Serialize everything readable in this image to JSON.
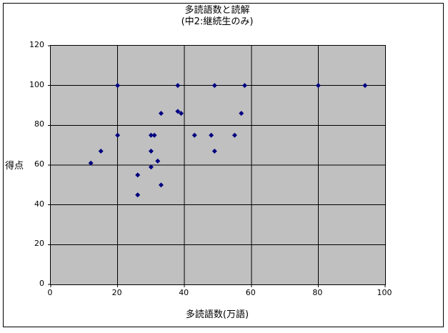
{
  "chart_data": {
    "type": "scatter",
    "title": "多読語数と読解",
    "subtitle": "(中2:継続生のみ)",
    "xlabel": "多読語数(万語)",
    "ylabel": "得点",
    "xlim": [
      0,
      100
    ],
    "ylim": [
      0,
      120
    ],
    "xticks": [
      0,
      20,
      40,
      60,
      80,
      100
    ],
    "yticks": [
      0,
      20,
      40,
      60,
      80,
      100,
      120
    ],
    "grid": true,
    "legend": false,
    "plot_bg_color": "#c0c0c0",
    "grid_color": "#000000",
    "axis_color": "#000000",
    "marker_color": "#000080",
    "marker_shape": "diamond",
    "points": [
      [
        12,
        61
      ],
      [
        15,
        67
      ],
      [
        20,
        75
      ],
      [
        20,
        100
      ],
      [
        26,
        45
      ],
      [
        26,
        55
      ],
      [
        30,
        59
      ],
      [
        30,
        67
      ],
      [
        30,
        75
      ],
      [
        31,
        75
      ],
      [
        32,
        62
      ],
      [
        33,
        50
      ],
      [
        33,
        86
      ],
      [
        38,
        87
      ],
      [
        38,
        100
      ],
      [
        39,
        86
      ],
      [
        43,
        75
      ],
      [
        48,
        75
      ],
      [
        49,
        67
      ],
      [
        49,
        100
      ],
      [
        55,
        75
      ],
      [
        57,
        86
      ],
      [
        58,
        100
      ],
      [
        80,
        100
      ],
      [
        94,
        100
      ]
    ]
  }
}
